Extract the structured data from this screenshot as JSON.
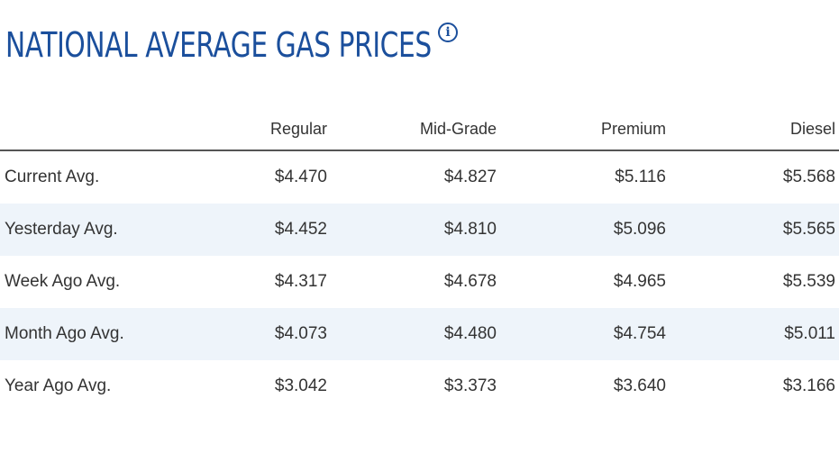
{
  "header": {
    "title": "NATIONAL AVERAGE GAS PRICES",
    "info_icon": "info-icon"
  },
  "table": {
    "columns": [
      "",
      "Regular",
      "Mid-Grade",
      "Premium",
      "Diesel"
    ],
    "rows": [
      {
        "label": "Current Avg.",
        "regular": "$4.470",
        "mid_grade": "$4.827",
        "premium": "$5.116",
        "diesel": "$5.568"
      },
      {
        "label": "Yesterday Avg.",
        "regular": "$4.452",
        "mid_grade": "$4.810",
        "premium": "$5.096",
        "diesel": "$5.565"
      },
      {
        "label": "Week Ago Avg.",
        "regular": "$4.317",
        "mid_grade": "$4.678",
        "premium": "$4.965",
        "diesel": "$5.539"
      },
      {
        "label": "Month Ago Avg.",
        "regular": "$4.073",
        "mid_grade": "$4.480",
        "premium": "$4.754",
        "diesel": "$5.011"
      },
      {
        "label": "Year Ago Avg.",
        "regular": "$3.042",
        "mid_grade": "$3.373",
        "premium": "$3.640",
        "diesel": "$3.166"
      }
    ]
  },
  "colors": {
    "title": "#1b4f9c",
    "row_shade": "#eef4fa",
    "text": "#333333"
  }
}
